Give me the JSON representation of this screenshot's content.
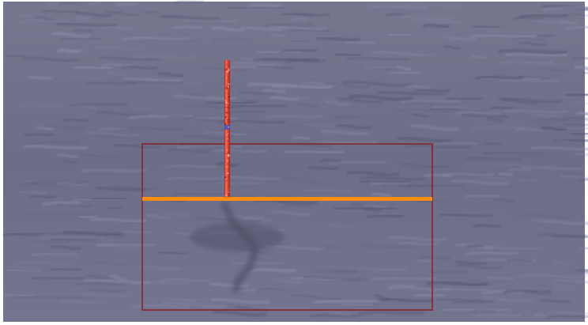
{
  "scene": {
    "subject": "sea-surface-with-marker-pole",
    "colors": {
      "frame": "#ffffff",
      "water_base": "#6d6f8a",
      "water_light": "#8a8ca6",
      "water_dark": "#55576f",
      "pole": "#d8332a",
      "pole_highlight": "#ff6a4a",
      "pole_band": "#3d55c8",
      "waterline": "#ff8a14",
      "box_outline": "#8a1f1f",
      "shadow": "#4a4a60"
    }
  }
}
